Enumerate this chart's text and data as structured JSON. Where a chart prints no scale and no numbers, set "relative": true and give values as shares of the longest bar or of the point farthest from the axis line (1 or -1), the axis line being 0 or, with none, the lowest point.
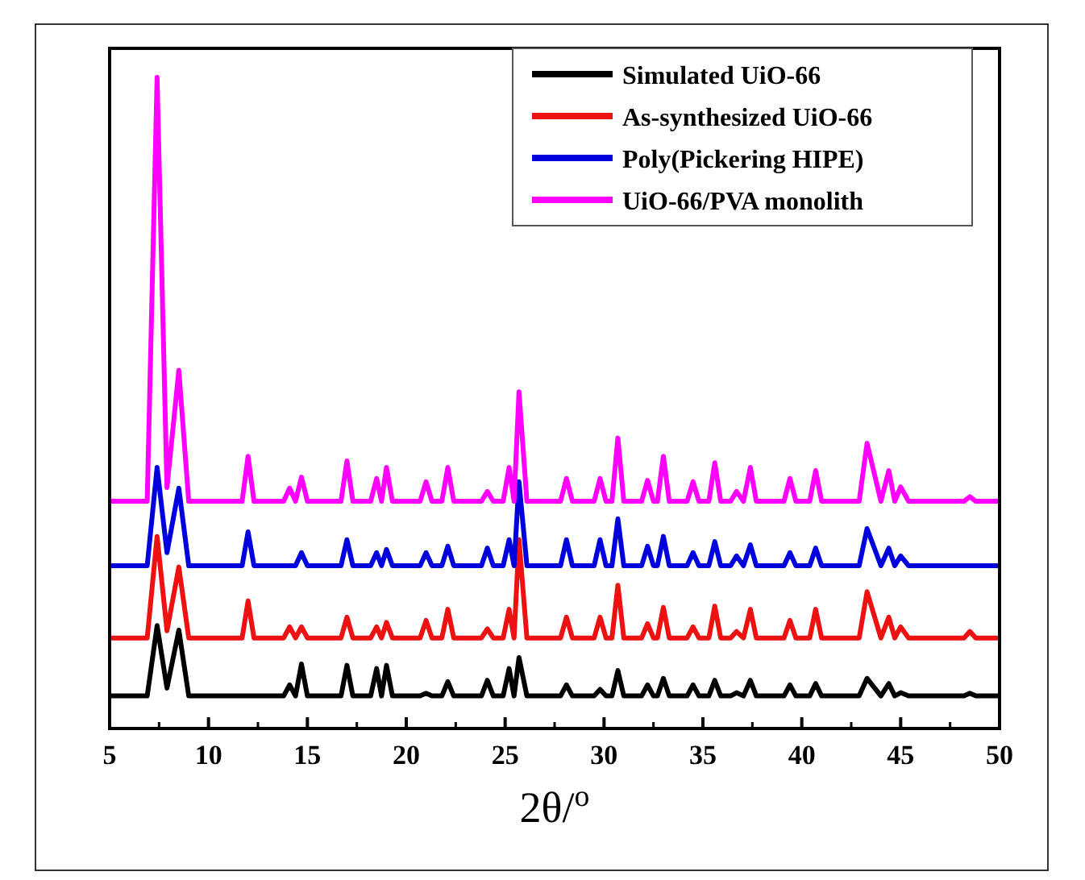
{
  "chart_data": {
    "type": "line",
    "relative": true,
    "xlabel": "2θ/$^{o}$",
    "xlim": [
      5,
      50
    ],
    "xticks": [
      5,
      10,
      15,
      20,
      25,
      30,
      35,
      40,
      45,
      50
    ],
    "legend": "top right",
    "grid": false,
    "marker": "none",
    "line_style": "solid",
    "tick_labels": "x",
    "x": [
      5,
      6.9,
      7.4,
      7.9,
      8.5,
      9.0,
      11.7,
      12.0,
      12.3,
      13.8,
      14.1,
      14.4,
      14.7,
      15.0,
      16.7,
      17.0,
      17.3,
      18.2,
      18.5,
      18.75,
      19.0,
      19.3,
      20.7,
      21.0,
      21.3,
      21.8,
      22.1,
      22.4,
      23.8,
      24.1,
      24.4,
      24.9,
      25.2,
      25.45,
      25.7,
      26.1,
      27.8,
      28.1,
      28.4,
      29.5,
      29.8,
      30.1,
      30.4,
      30.7,
      31.0,
      31.9,
      32.2,
      32.5,
      32.7,
      33.0,
      33.3,
      34.2,
      34.5,
      34.8,
      35.3,
      35.6,
      35.9,
      36.4,
      36.7,
      37.05,
      37.4,
      37.7,
      39.1,
      39.4,
      39.7,
      40.4,
      40.7,
      41.0,
      42.9,
      43.3,
      44.0,
      44.4,
      44.7,
      45.0,
      45.4,
      48.2,
      48.5,
      48.8,
      50
    ],
    "series": [
      {
        "name": "Simulated UiO-66",
        "color": "#000000",
        "values": [
          0.05,
          0.05,
          0.158,
          0.062,
          0.151,
          0.05,
          0.05,
          0.05,
          0.05,
          0.05,
          0.067,
          0.05,
          0.099,
          0.05,
          0.05,
          0.097,
          0.05,
          0.05,
          0.092,
          0.05,
          0.097,
          0.05,
          0.05,
          0.054,
          0.05,
          0.05,
          0.072,
          0.05,
          0.05,
          0.074,
          0.05,
          0.05,
          0.092,
          0.05,
          0.109,
          0.05,
          0.05,
          0.067,
          0.05,
          0.05,
          0.06,
          0.05,
          0.05,
          0.089,
          0.05,
          0.05,
          0.067,
          0.05,
          0.05,
          0.077,
          0.05,
          0.05,
          0.067,
          0.05,
          0.05,
          0.074,
          0.05,
          0.05,
          0.055,
          0.05,
          0.074,
          0.05,
          0.05,
          0.067,
          0.05,
          0.05,
          0.069,
          0.05,
          0.05,
          0.077,
          0.05,
          0.069,
          0.05,
          0.055,
          0.05,
          0.05,
          0.054,
          0.05,
          0.05
        ]
      },
      {
        "name": "As-synthesized UiO-66",
        "color": "#ee1111",
        "values": [
          0.139,
          0.139,
          0.295,
          0.15,
          0.248,
          0.139,
          0.139,
          0.196,
          0.139,
          0.139,
          0.156,
          0.139,
          0.156,
          0.139,
          0.139,
          0.171,
          0.139,
          0.139,
          0.156,
          0.139,
          0.163,
          0.139,
          0.139,
          0.166,
          0.139,
          0.139,
          0.183,
          0.139,
          0.139,
          0.153,
          0.139,
          0.139,
          0.183,
          0.139,
          0.29,
          0.139,
          0.139,
          0.171,
          0.139,
          0.139,
          0.171,
          0.139,
          0.139,
          0.22,
          0.139,
          0.139,
          0.161,
          0.139,
          0.139,
          0.186,
          0.139,
          0.139,
          0.156,
          0.139,
          0.139,
          0.188,
          0.139,
          0.139,
          0.149,
          0.139,
          0.183,
          0.139,
          0.139,
          0.166,
          0.139,
          0.139,
          0.183,
          0.139,
          0.139,
          0.21,
          0.139,
          0.171,
          0.139,
          0.156,
          0.139,
          0.139,
          0.149,
          0.139,
          0.139
        ]
      },
      {
        "name": "Poly(Pickering HIPE)",
        "color": "#0000dd",
        "values": [
          0.25,
          0.25,
          0.401,
          0.27,
          0.369,
          0.25,
          0.25,
          0.302,
          0.25,
          0.25,
          0.25,
          0.25,
          0.27,
          0.25,
          0.25,
          0.29,
          0.25,
          0.25,
          0.27,
          0.25,
          0.275,
          0.25,
          0.25,
          0.27,
          0.25,
          0.25,
          0.28,
          0.25,
          0.25,
          0.277,
          0.25,
          0.25,
          0.29,
          0.25,
          0.379,
          0.25,
          0.25,
          0.29,
          0.25,
          0.25,
          0.29,
          0.25,
          0.25,
          0.322,
          0.25,
          0.25,
          0.28,
          0.25,
          0.25,
          0.295,
          0.25,
          0.25,
          0.27,
          0.25,
          0.25,
          0.287,
          0.25,
          0.25,
          0.265,
          0.25,
          0.282,
          0.25,
          0.25,
          0.27,
          0.25,
          0.25,
          0.277,
          0.25,
          0.25,
          0.307,
          0.25,
          0.277,
          0.25,
          0.265,
          0.25,
          0.25,
          0.25,
          0.25,
          0.25
        ]
      },
      {
        "name": "UiO-66/PVA monolith",
        "color": "#ff00ff",
        "values": [
          0.349,
          0.349,
          1.0,
          0.37,
          0.55,
          0.349,
          0.349,
          0.418,
          0.349,
          0.349,
          0.369,
          0.349,
          0.386,
          0.349,
          0.349,
          0.411,
          0.349,
          0.349,
          0.384,
          0.349,
          0.401,
          0.349,
          0.349,
          0.379,
          0.349,
          0.349,
          0.401,
          0.349,
          0.349,
          0.364,
          0.349,
          0.349,
          0.401,
          0.349,
          0.517,
          0.349,
          0.349,
          0.384,
          0.349,
          0.349,
          0.384,
          0.349,
          0.349,
          0.446,
          0.349,
          0.349,
          0.381,
          0.349,
          0.349,
          0.418,
          0.349,
          0.349,
          0.379,
          0.349,
          0.349,
          0.408,
          0.349,
          0.349,
          0.364,
          0.349,
          0.401,
          0.349,
          0.349,
          0.384,
          0.349,
          0.349,
          0.396,
          0.349,
          0.349,
          0.438,
          0.349,
          0.396,
          0.349,
          0.371,
          0.349,
          0.349,
          0.356,
          0.349,
          0.349
        ]
      }
    ]
  }
}
